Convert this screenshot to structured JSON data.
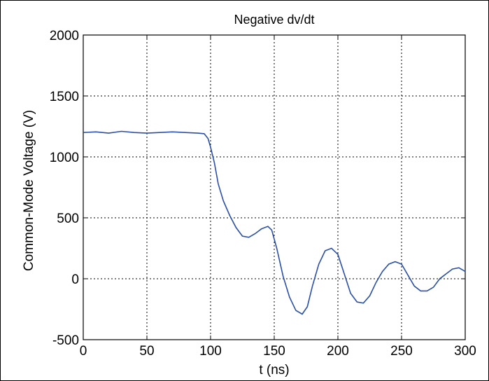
{
  "chart_data": {
    "type": "line",
    "title": "Negative dv/dt",
    "xlabel": "t (ns)",
    "ylabel": "Common-Mode Voltage (V)",
    "xlim": [
      0,
      300
    ],
    "ylim": [
      -500,
      2000
    ],
    "x_ticks": [
      0,
      50,
      100,
      150,
      200,
      250,
      300
    ],
    "y_ticks": [
      -500,
      0,
      500,
      1000,
      1500,
      2000
    ],
    "grid": true,
    "line_color": "#2a4fa8",
    "series": [
      {
        "x": [
          0,
          10,
          20,
          30,
          40,
          50,
          60,
          70,
          80,
          90,
          95,
          98,
          100,
          103,
          106,
          110,
          115,
          120,
          125,
          130,
          135,
          140,
          145,
          148,
          152,
          157,
          162,
          167,
          172,
          176,
          180,
          185,
          190,
          195,
          200,
          205,
          210,
          215,
          220,
          225,
          230,
          235,
          240,
          245,
          250,
          255,
          260,
          265,
          270,
          275,
          280,
          285,
          290,
          295,
          300
        ],
        "y": [
          1200,
          1205,
          1195,
          1210,
          1200,
          1195,
          1200,
          1205,
          1200,
          1195,
          1190,
          1150,
          1080,
          950,
          780,
          640,
          520,
          420,
          350,
          340,
          370,
          410,
          430,
          400,
          250,
          20,
          -150,
          -260,
          -290,
          -230,
          -60,
          120,
          230,
          250,
          200,
          40,
          -120,
          -190,
          -200,
          -140,
          -30,
          60,
          120,
          140,
          120,
          30,
          -60,
          -100,
          -100,
          -70,
          0,
          40,
          80,
          90,
          60
        ]
      }
    ]
  }
}
